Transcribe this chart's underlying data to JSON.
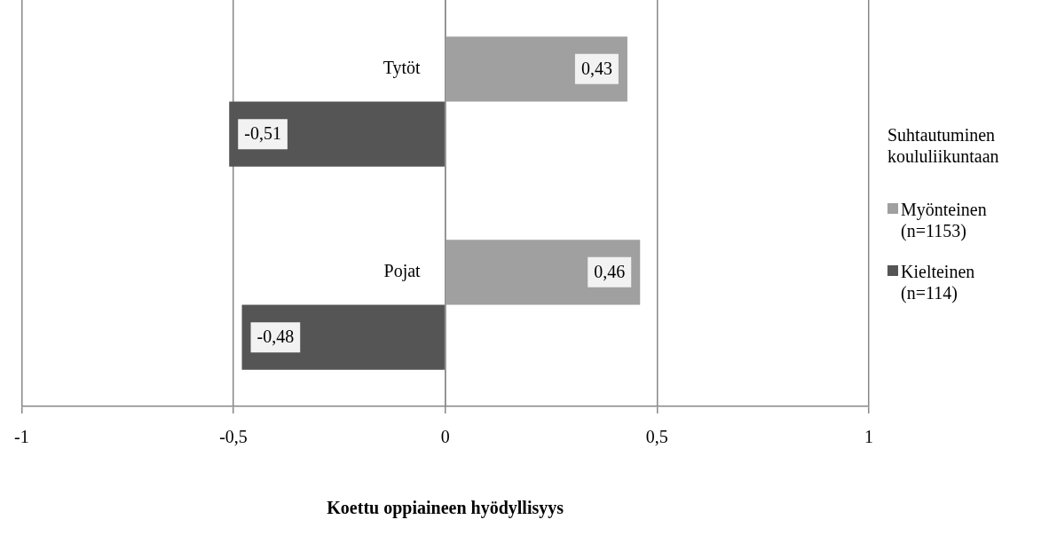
{
  "chart_data": {
    "type": "bar",
    "orientation": "horizontal",
    "xlabel": "Koettu oppiaineen hyödyllisyys",
    "legend_title": "Suhtautuminen koululiikuntaan",
    "categories": [
      "Tytöt",
      "Pojat"
    ],
    "series": [
      {
        "name": "Myönteinen (n=1153)",
        "color": "#a0a0a0",
        "values": [
          0.43,
          0.46
        ],
        "value_labels": [
          "0,43",
          "0,46"
        ]
      },
      {
        "name": "Kielteinen (n=114)",
        "color": "#555555",
        "values": [
          -0.51,
          -0.48
        ],
        "value_labels": [
          "-0,51",
          "-0,48"
        ]
      }
    ],
    "xlim": [
      -1,
      1
    ],
    "xticks": [
      {
        "value": -1,
        "label": "-1"
      },
      {
        "value": -0.5,
        "label": "-0,5"
      },
      {
        "value": 0,
        "label": "0"
      },
      {
        "value": 0.5,
        "label": "0,5"
      },
      {
        "value": 1,
        "label": "1"
      }
    ],
    "grid": "x",
    "legend": "right"
  }
}
